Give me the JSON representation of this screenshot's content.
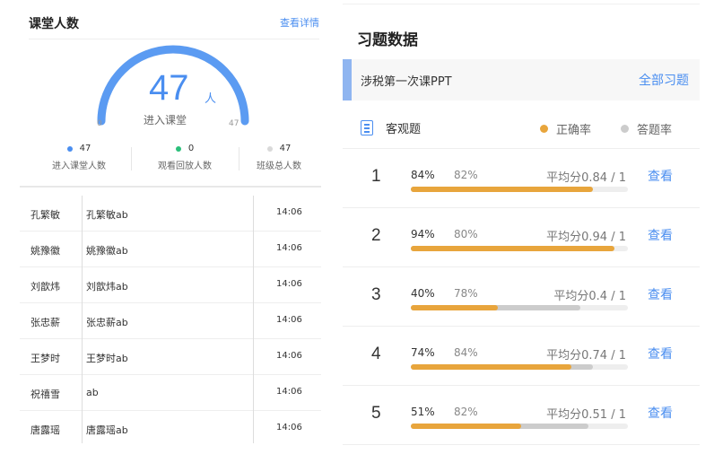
{
  "left": {
    "title": "课堂人数",
    "detail_link": "查看详情",
    "gauge": {
      "value": "47",
      "unit": "人",
      "label": "进入课堂",
      "min": "0",
      "max": "47",
      "fraction": 1.0
    },
    "stats": [
      {
        "value": "47",
        "label": "进入课堂人数",
        "color": "#4a8ef0"
      },
      {
        "value": "0",
        "label": "观看回放人数",
        "color": "#2bbf7a"
      },
      {
        "value": "47",
        "label": "班级总人数",
        "color": "#d9d9d9"
      }
    ],
    "rows": [
      {
        "name": "孔繁敏",
        "nick": "孔繁敏ab",
        "time": "14:06"
      },
      {
        "name": "姚豫徽",
        "nick": "姚豫徽ab",
        "time": "14:06"
      },
      {
        "name": "刘歆炜",
        "nick": "刘歆炜ab",
        "time": "14:06"
      },
      {
        "name": "张忠薪",
        "nick": "张忠薪ab",
        "time": "14:06"
      },
      {
        "name": "王梦时",
        "nick": "王梦时ab",
        "time": "14:06"
      },
      {
        "name": "祝禧雪",
        "nick": "ab",
        "time": "14:06"
      },
      {
        "name": "唐露瑶",
        "nick": "唐露瑶ab",
        "time": "14:06"
      }
    ]
  },
  "right": {
    "title": "习题数据",
    "ppt_name": "涉税第一次课PPT",
    "all_link": "全部习题",
    "section_title": "客观题",
    "legend_correct": "正确率",
    "legend_answer": "答题率",
    "colors": {
      "correct": "#e8a53c",
      "answer": "#cccccc",
      "accent": "#4a8ef0"
    },
    "questions": [
      {
        "num": "1",
        "correct": "84%",
        "answer": "82%",
        "avg": "平均分0.84 / 1",
        "view": "查看",
        "correct_frac": 0.84,
        "answer_frac": 0.82
      },
      {
        "num": "2",
        "correct": "94%",
        "answer": "80%",
        "avg": "平均分0.94 / 1",
        "view": "查看",
        "correct_frac": 0.94,
        "answer_frac": 0.8
      },
      {
        "num": "3",
        "correct": "40%",
        "answer": "78%",
        "avg": "平均分0.4 / 1",
        "view": "查看",
        "correct_frac": 0.4,
        "answer_frac": 0.78
      },
      {
        "num": "4",
        "correct": "74%",
        "answer": "84%",
        "avg": "平均分0.74 / 1",
        "view": "查看",
        "correct_frac": 0.74,
        "answer_frac": 0.84
      },
      {
        "num": "5",
        "correct": "51%",
        "answer": "82%",
        "avg": "平均分0.51 / 1",
        "view": "查看",
        "correct_frac": 0.51,
        "answer_frac": 0.82
      }
    ]
  }
}
